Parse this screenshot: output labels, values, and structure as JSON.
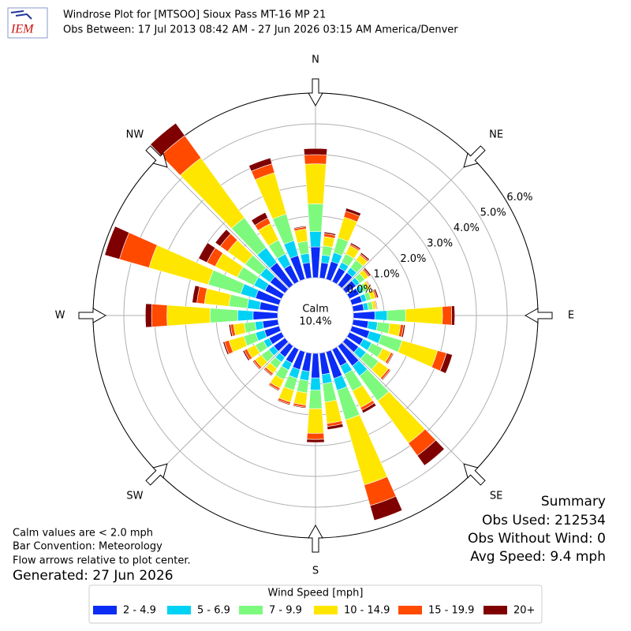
{
  "chart_data": {
    "type": "windrose",
    "logo_text": "IEM",
    "title": "Windrose Plot for [MTSOO] Sioux Pass MT-16 MP 21",
    "subtitle": "Obs Between: 17 Jul 2013 08:42 AM - 27 Jun 2026 03:15 AM America/Denver",
    "x": [
      0,
      10,
      20,
      30,
      40,
      50,
      60,
      70,
      80,
      90,
      100,
      110,
      120,
      130,
      140,
      150,
      160,
      170,
      180,
      190,
      200,
      210,
      220,
      230,
      240,
      250,
      260,
      270,
      280,
      290,
      300,
      310,
      320,
      330,
      340,
      350
    ],
    "xlim": [
      0,
      360
    ],
    "xticks": [
      {
        "value": 0,
        "label": "N"
      },
      {
        "value": 45,
        "label": "NE"
      },
      {
        "value": 90,
        "label": "E"
      },
      {
        "value": 135,
        "label": "SE"
      },
      {
        "value": 180,
        "label": "S"
      },
      {
        "value": 225,
        "label": "SW"
      },
      {
        "value": 270,
        "label": "W"
      },
      {
        "value": 315,
        "label": "NW"
      }
    ],
    "ylim": [
      0,
      6
    ],
    "yticks": [
      {
        "value": 0,
        "label": "0.0%"
      },
      {
        "value": 1,
        "label": "1.0%"
      },
      {
        "value": 2,
        "label": "2.0%"
      },
      {
        "value": 3,
        "label": "3.0%"
      },
      {
        "value": 4,
        "label": "4.0%"
      },
      {
        "value": 5,
        "label": "5.0%"
      },
      {
        "value": 6,
        "label": "6.0%"
      }
    ],
    "grid": true,
    "calm": {
      "label": "Calm",
      "value": 10.4,
      "value_label": "10.4%"
    },
    "legend_title": "Wind Speed [mph]",
    "series": [
      {
        "name": "2 - 4.9",
        "color": "#0b2cf5",
        "values": [
          1.0,
          0.5,
          0.6,
          0.5,
          0.5,
          0.4,
          0.35,
          0.35,
          0.35,
          0.7,
          0.5,
          0.6,
          0.5,
          0.5,
          0.8,
          0.6,
          0.9,
          0.7,
          0.8,
          0.6,
          0.6,
          0.5,
          0.45,
          0.45,
          0.45,
          0.5,
          0.5,
          0.8,
          0.6,
          0.8,
          0.6,
          0.6,
          0.9,
          0.6,
          0.8,
          0.5
        ]
      },
      {
        "name": "5 - 6.9",
        "color": "#00d2f5",
        "values": [
          0.5,
          0.25,
          0.3,
          0.2,
          0.2,
          0.15,
          0.15,
          0.15,
          0.15,
          0.4,
          0.3,
          0.4,
          0.3,
          0.3,
          0.4,
          0.3,
          0.4,
          0.3,
          0.4,
          0.3,
          0.3,
          0.25,
          0.2,
          0.2,
          0.2,
          0.3,
          0.25,
          0.5,
          0.4,
          0.5,
          0.4,
          0.4,
          0.6,
          0.4,
          0.5,
          0.3
        ]
      },
      {
        "name": "7 - 9.9",
        "color": "#7dfa7d",
        "values": [
          0.9,
          0.3,
          0.5,
          0.3,
          0.3,
          0.2,
          0.15,
          0.15,
          0.15,
          0.6,
          0.4,
          0.7,
          0.4,
          0.5,
          1.0,
          0.6,
          1.0,
          0.6,
          0.6,
          0.4,
          0.4,
          0.35,
          0.25,
          0.3,
          0.3,
          0.4,
          0.35,
          0.9,
          0.6,
          1.1,
          0.6,
          0.6,
          1.2,
          0.5,
          0.9,
          0.4
        ]
      },
      {
        "name": "10 - 14.9",
        "color": "#ffe600",
        "values": [
          1.3,
          0.3,
          0.7,
          0.3,
          0.2,
          0.15,
          0.1,
          0.15,
          0.1,
          1.2,
          0.35,
          1.2,
          0.3,
          0.4,
          1.7,
          0.6,
          2.2,
          0.7,
          0.8,
          0.4,
          0.4,
          0.3,
          0.2,
          0.25,
          0.3,
          0.5,
          0.35,
          1.4,
          0.8,
          2.0,
          0.8,
          0.7,
          2.4,
          0.6,
          1.4,
          0.4
        ]
      },
      {
        "name": "15 - 19.9",
        "color": "#ff4a00",
        "values": [
          0.3,
          0.1,
          0.2,
          0.05,
          0.05,
          0.05,
          0.03,
          0.05,
          0.03,
          0.3,
          0.1,
          0.3,
          0.07,
          0.07,
          0.5,
          0.1,
          0.7,
          0.1,
          0.2,
          0.07,
          0.07,
          0.07,
          0.07,
          0.07,
          0.1,
          0.15,
          0.1,
          0.5,
          0.25,
          1.0,
          0.3,
          0.3,
          0.9,
          0.2,
          0.3,
          0.07
        ]
      },
      {
        "name": "20+",
        "color": "#7f0000",
        "values": [
          0.2,
          0.05,
          0.1,
          0.05,
          0.05,
          0.05,
          0.02,
          0.05,
          0.02,
          0.1,
          0.05,
          0.2,
          0.03,
          0.03,
          0.4,
          0.1,
          0.5,
          0.1,
          0.1,
          0.03,
          0.03,
          0.03,
          0.03,
          0.03,
          0.05,
          0.05,
          0.05,
          0.2,
          0.15,
          0.5,
          0.3,
          0.2,
          0.5,
          0.2,
          0.2,
          0.03
        ]
      }
    ],
    "summary": [
      "Summary",
      "Obs Used: 212534",
      "Obs Without Wind: 0",
      "Avg Speed: 9.4 mph"
    ],
    "notes": [
      "Calm values are < 2.0 mph",
      "Bar Convention: Meteorology",
      "Flow arrows relative to plot center."
    ],
    "generated": "Generated: 27 Jun 2026"
  }
}
